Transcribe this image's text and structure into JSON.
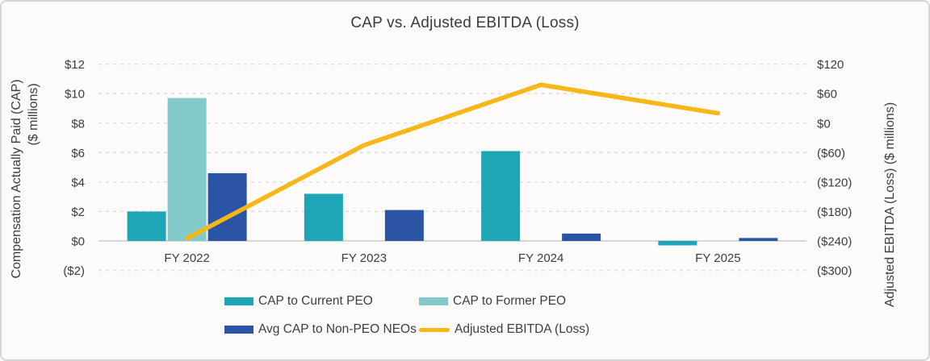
{
  "chart_data": {
    "type": "combo-bar-line",
    "title": "CAP vs. Adjusted EBITDA (Loss)",
    "categories": [
      "FY 2022",
      "FY 2023",
      "FY 2024",
      "FY 2025"
    ],
    "bar_series": [
      {
        "name": "CAP to Current PEO",
        "axis": "left",
        "color": "#1FA6B6",
        "values": [
          2.0,
          3.2,
          6.1,
          -0.3
        ]
      },
      {
        "name": "CAP to Former PEO",
        "axis": "left",
        "color": "#84C9CA",
        "values": [
          9.7,
          null,
          null,
          null
        ]
      },
      {
        "name": "Avg CAP to Non-PEO NEOs",
        "axis": "left",
        "color": "#2B54A4",
        "values": [
          4.6,
          2.1,
          0.5,
          0.2
        ]
      }
    ],
    "line_series": [
      {
        "name": "Adjusted EBITDA (Loss)",
        "axis": "right",
        "color": "#F7B716",
        "values": [
          -235,
          -45,
          78,
          20
        ]
      }
    ],
    "left_axis": {
      "title_line1": "Compensation Actually Paid (CAP)",
      "title_line2": "($ millions)",
      "range": [
        -2,
        12
      ],
      "ticks": [
        {
          "value": 12,
          "label": "$12"
        },
        {
          "value": 10,
          "label": "$10"
        },
        {
          "value": 8,
          "label": "$8"
        },
        {
          "value": 6,
          "label": "$6"
        },
        {
          "value": 4,
          "label": "$4"
        },
        {
          "value": 2,
          "label": "$2"
        },
        {
          "value": 0,
          "label": "$0"
        },
        {
          "value": -2,
          "label": "($2)",
          "color": "#E0392F"
        }
      ]
    },
    "right_axis": {
      "title": "Adjusted EBITDA (Loss) ($ millions)",
      "range": [
        -300,
        120
      ],
      "ticks": [
        {
          "value": 120,
          "label": "$120"
        },
        {
          "value": 60,
          "label": "$60"
        },
        {
          "value": 0,
          "label": "$0"
        },
        {
          "value": -60,
          "label": "($60)"
        },
        {
          "value": -120,
          "label": "($120)"
        },
        {
          "value": -180,
          "label": "($180)"
        },
        {
          "value": -240,
          "label": "($240)"
        },
        {
          "value": -300,
          "label": "($300)"
        }
      ]
    },
    "style": {
      "grid_color": "#DADADA",
      "baseline_color": "#C9C9C9",
      "text_color": "#3D3D3D",
      "grid": "dashed-horizontal",
      "legend_position": "bottom"
    }
  }
}
